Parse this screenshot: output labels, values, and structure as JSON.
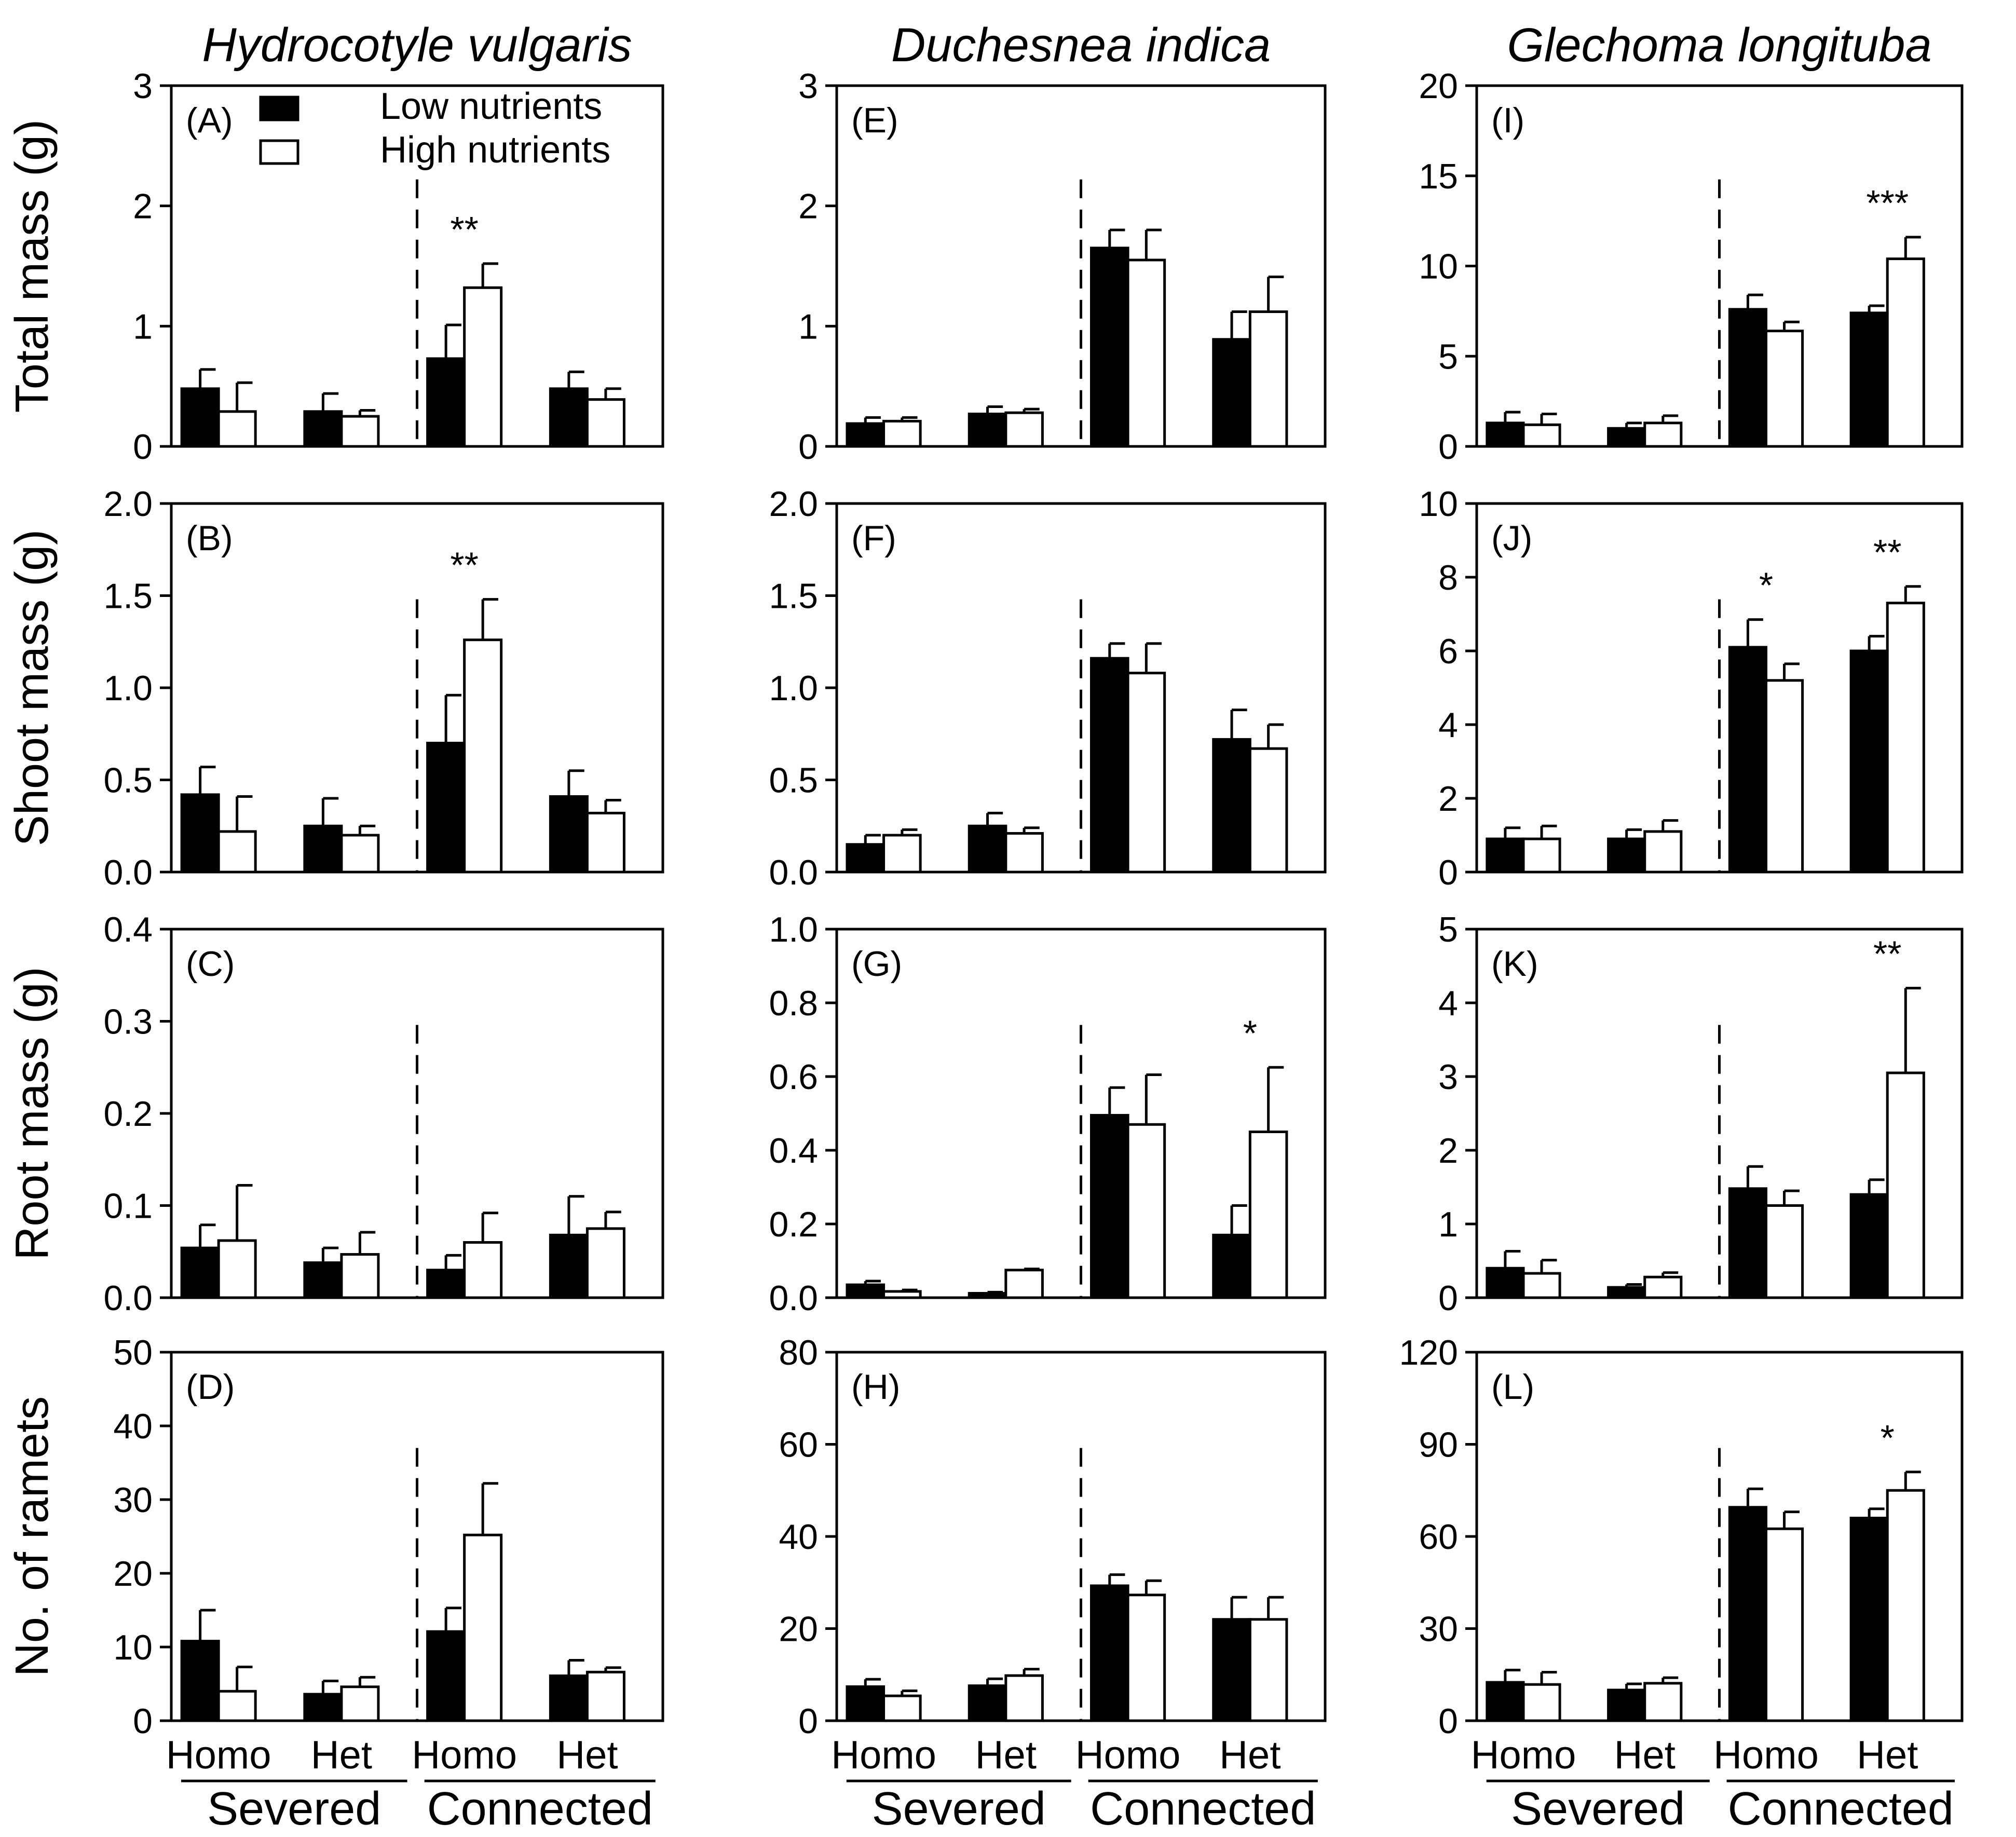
{
  "colors": {
    "low": "#000000",
    "high": "#ffffff",
    "stroke": "#000000"
  },
  "legend": {
    "low": "Low nutrients",
    "high": "High nutrients"
  },
  "x_axis": {
    "categories": [
      "Homo",
      "Het",
      "Homo",
      "Het"
    ],
    "groups": [
      "Severed",
      "Connected"
    ]
  },
  "species": [
    "Hydrocotyle vulgaris",
    "Duchesnea indica",
    "Glechoma longituba"
  ],
  "row_ylabels": [
    "Total mass (g)",
    "Shoot mass (g)",
    "Root mass (g)",
    "No. of ramets"
  ],
  "chart_data": [
    {
      "type": "bar",
      "panel": "(A)",
      "species": "Hydrocotyle vulgaris",
      "ylabel": "Total mass (g)",
      "ylim": [
        0,
        3
      ],
      "yticks": [
        0,
        1,
        2,
        3
      ],
      "categories": [
        "Severed Homo",
        "Severed Het",
        "Connected Homo",
        "Connected Het"
      ],
      "series": [
        {
          "name": "Low nutrients",
          "values": [
            0.48,
            0.29,
            0.73,
            0.48
          ],
          "errors": [
            0.16,
            0.15,
            0.28,
            0.14
          ]
        },
        {
          "name": "High nutrients",
          "values": [
            0.29,
            0.25,
            1.32,
            0.39
          ],
          "errors": [
            0.24,
            0.05,
            0.2,
            0.09
          ]
        }
      ],
      "significance": [
        {
          "group": 2,
          "label": "**"
        }
      ]
    },
    {
      "type": "bar",
      "panel": "(B)",
      "species": "Hydrocotyle vulgaris",
      "ylabel": "Shoot mass (g)",
      "ylim": [
        0,
        2
      ],
      "yticks": [
        "0.0",
        "0.5",
        "1.0",
        "1.5",
        "2.0"
      ],
      "categories": [
        "Severed Homo",
        "Severed Het",
        "Connected Homo",
        "Connected Het"
      ],
      "series": [
        {
          "name": "Low nutrients",
          "values": [
            0.42,
            0.25,
            0.7,
            0.41
          ],
          "errors": [
            0.15,
            0.15,
            0.26,
            0.14
          ]
        },
        {
          "name": "High nutrients",
          "values": [
            0.22,
            0.2,
            1.26,
            0.32
          ],
          "errors": [
            0.19,
            0.05,
            0.22,
            0.07
          ]
        }
      ],
      "significance": [
        {
          "group": 2,
          "label": "**"
        }
      ]
    },
    {
      "type": "bar",
      "panel": "(C)",
      "species": "Hydrocotyle vulgaris",
      "ylabel": "Root mass (g)",
      "ylim": [
        0,
        0.4
      ],
      "yticks": [
        "0.0",
        "0.1",
        "0.2",
        "0.3",
        "0.4"
      ],
      "categories": [
        "Severed Homo",
        "Severed Het",
        "Connected Homo",
        "Connected Het"
      ],
      "series": [
        {
          "name": "Low nutrients",
          "values": [
            0.054,
            0.038,
            0.03,
            0.068
          ],
          "errors": [
            0.025,
            0.016,
            0.016,
            0.042
          ]
        },
        {
          "name": "High nutrients",
          "values": [
            0.062,
            0.047,
            0.06,
            0.075
          ],
          "errors": [
            0.06,
            0.024,
            0.032,
            0.018
          ]
        }
      ],
      "significance": []
    },
    {
      "type": "bar",
      "panel": "(D)",
      "species": "Hydrocotyle vulgaris",
      "ylabel": "No. of ramets",
      "ylim": [
        0,
        50
      ],
      "yticks": [
        0,
        10,
        20,
        30,
        40,
        50
      ],
      "categories": [
        "Severed Homo",
        "Severed Het",
        "Connected Homo",
        "Connected Het"
      ],
      "series": [
        {
          "name": "Low nutrients",
          "values": [
            10.8,
            3.6,
            12.1,
            6.1
          ],
          "errors": [
            4.2,
            1.8,
            3.2,
            2.1
          ]
        },
        {
          "name": "High nutrients",
          "values": [
            4.0,
            4.6,
            25.2,
            6.6
          ],
          "errors": [
            3.3,
            1.3,
            7.0,
            0.6
          ]
        }
      ],
      "significance": []
    },
    {
      "type": "bar",
      "panel": "(E)",
      "species": "Duchesnea indica",
      "ylabel": "Total mass (g)",
      "ylim": [
        0,
        3
      ],
      "yticks": [
        0,
        1,
        2,
        3
      ],
      "categories": [
        "Severed Homo",
        "Severed Het",
        "Connected Homo",
        "Connected Het"
      ],
      "series": [
        {
          "name": "Low nutrients",
          "values": [
            0.19,
            0.27,
            1.65,
            0.89
          ],
          "errors": [
            0.05,
            0.06,
            0.15,
            0.23
          ]
        },
        {
          "name": "High nutrients",
          "values": [
            0.21,
            0.28,
            1.55,
            1.12
          ],
          "errors": [
            0.03,
            0.03,
            0.25,
            0.29
          ]
        }
      ],
      "significance": []
    },
    {
      "type": "bar",
      "panel": "(F)",
      "species": "Duchesnea indica",
      "ylabel": "Shoot mass (g)",
      "ylim": [
        0,
        2
      ],
      "yticks": [
        "0.0",
        "0.5",
        "1.0",
        "1.5",
        "2.0"
      ],
      "categories": [
        "Severed Homo",
        "Severed Het",
        "Connected Homo",
        "Connected Het"
      ],
      "series": [
        {
          "name": "Low nutrients",
          "values": [
            0.15,
            0.25,
            1.16,
            0.72
          ],
          "errors": [
            0.05,
            0.07,
            0.08,
            0.16
          ]
        },
        {
          "name": "High nutrients",
          "values": [
            0.2,
            0.21,
            1.08,
            0.67
          ],
          "errors": [
            0.03,
            0.03,
            0.16,
            0.13
          ]
        }
      ],
      "significance": []
    },
    {
      "type": "bar",
      "panel": "(G)",
      "species": "Duchesnea indica",
      "ylabel": "Root mass (g)",
      "ylim": [
        0,
        1
      ],
      "yticks": [
        "0.0",
        "0.2",
        "0.4",
        "0.6",
        "0.8",
        "1.0"
      ],
      "categories": [
        "Severed Homo",
        "Severed Het",
        "Connected Homo",
        "Connected Het"
      ],
      "series": [
        {
          "name": "Low nutrients",
          "values": [
            0.035,
            0.012,
            0.495,
            0.17
          ],
          "errors": [
            0.01,
            0.003,
            0.075,
            0.08
          ]
        },
        {
          "name": "High nutrients",
          "values": [
            0.017,
            0.075,
            0.47,
            0.45
          ],
          "errors": [
            0.004,
            0.003,
            0.135,
            0.175
          ]
        }
      ],
      "significance": [
        {
          "group": 3,
          "label": "*"
        }
      ]
    },
    {
      "type": "bar",
      "panel": "(H)",
      "species": "Duchesnea indica",
      "ylabel": "No. of ramets",
      "ylim": [
        0,
        80
      ],
      "yticks": [
        0,
        20,
        40,
        60,
        80
      ],
      "categories": [
        "Severed Homo",
        "Severed Het",
        "Connected Homo",
        "Connected Het"
      ],
      "series": [
        {
          "name": "Low nutrients",
          "values": [
            7.4,
            7.6,
            29.3,
            22.0
          ],
          "errors": [
            1.6,
            1.5,
            2.4,
            4.8
          ]
        },
        {
          "name": "High nutrients",
          "values": [
            5.4,
            9.8,
            27.3,
            22.0
          ],
          "errors": [
            1.1,
            1.4,
            3.1,
            4.8
          ]
        }
      ],
      "significance": []
    },
    {
      "type": "bar",
      "panel": "(I)",
      "species": "Glechoma longituba",
      "ylabel": "Total mass (g)",
      "ylim": [
        0,
        20
      ],
      "yticks": [
        0,
        5,
        10,
        15,
        20
      ],
      "categories": [
        "Severed Homo",
        "Severed Het",
        "Connected Homo",
        "Connected Het"
      ],
      "series": [
        {
          "name": "Low nutrients",
          "values": [
            1.3,
            1.0,
            7.6,
            7.4
          ],
          "errors": [
            0.6,
            0.3,
            0.8,
            0.4
          ]
        },
        {
          "name": "High nutrients",
          "values": [
            1.2,
            1.3,
            6.4,
            10.4
          ],
          "errors": [
            0.6,
            0.4,
            0.5,
            1.2
          ]
        }
      ],
      "significance": [
        {
          "group": 3,
          "label": "***"
        }
      ]
    },
    {
      "type": "bar",
      "panel": "(J)",
      "species": "Glechoma longituba",
      "ylabel": "Shoot mass (g)",
      "ylim": [
        0,
        10
      ],
      "yticks": [
        0,
        2,
        4,
        6,
        8,
        10
      ],
      "categories": [
        "Severed Homo",
        "Severed Het",
        "Connected Homo",
        "Connected Het"
      ],
      "series": [
        {
          "name": "Low nutrients",
          "values": [
            0.9,
            0.9,
            6.1,
            6.0
          ],
          "errors": [
            0.3,
            0.25,
            0.75,
            0.4
          ]
        },
        {
          "name": "High nutrients",
          "values": [
            0.9,
            1.1,
            5.2,
            7.3
          ],
          "errors": [
            0.35,
            0.3,
            0.45,
            0.45
          ]
        }
      ],
      "significance": [
        {
          "group": 2,
          "label": "*"
        },
        {
          "group": 3,
          "label": "**"
        }
      ]
    },
    {
      "type": "bar",
      "panel": "(K)",
      "species": "Glechoma longituba",
      "ylabel": "Root mass (g)",
      "ylim": [
        0,
        5
      ],
      "yticks": [
        0,
        1,
        2,
        3,
        4,
        5
      ],
      "categories": [
        "Severed Homo",
        "Severed Het",
        "Connected Homo",
        "Connected Het"
      ],
      "series": [
        {
          "name": "Low nutrients",
          "values": [
            0.4,
            0.14,
            1.48,
            1.4
          ],
          "errors": [
            0.23,
            0.04,
            0.3,
            0.2
          ]
        },
        {
          "name": "High nutrients",
          "values": [
            0.33,
            0.28,
            1.25,
            3.05
          ],
          "errors": [
            0.18,
            0.06,
            0.2,
            1.15
          ]
        }
      ],
      "significance": [
        {
          "group": 3,
          "label": "**"
        }
      ]
    },
    {
      "type": "bar",
      "panel": "(L)",
      "species": "Glechoma longituba",
      "ylabel": "No. of ramets",
      "ylim": [
        0,
        120
      ],
      "yticks": [
        0,
        30,
        60,
        90,
        120
      ],
      "categories": [
        "Severed Homo",
        "Severed Het",
        "Connected Homo",
        "Connected Het"
      ],
      "series": [
        {
          "name": "Low nutrients",
          "values": [
            12.5,
            10.0,
            69.5,
            66.0
          ],
          "errors": [
            4.0,
            2.0,
            6.0,
            3.0
          ]
        },
        {
          "name": "High nutrients",
          "values": [
            11.8,
            12.2,
            62.5,
            75.0
          ],
          "errors": [
            4.0,
            1.8,
            5.5,
            6.0
          ]
        }
      ],
      "significance": [
        {
          "group": 3,
          "label": "*"
        }
      ]
    }
  ]
}
